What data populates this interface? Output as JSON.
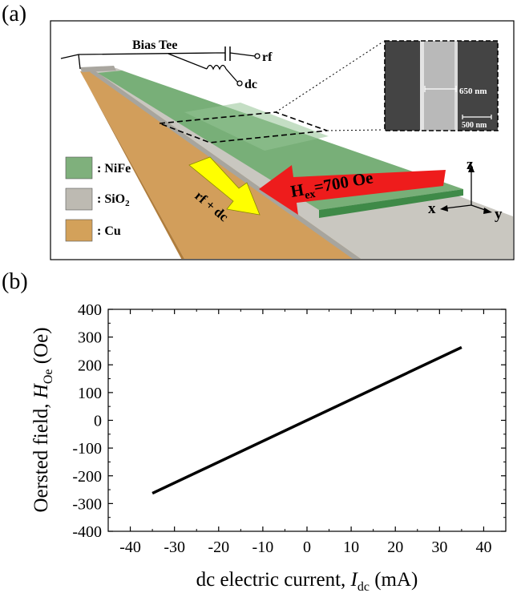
{
  "panel_a": {
    "label": "(a)",
    "bias_tee": "Bias Tee",
    "rf": "rf",
    "dc": "dc",
    "legend": [
      {
        "text": ": NiFe",
        "color": "#7fb07c"
      },
      {
        "text": ": SiO",
        "sub": "2",
        "color": "#bdbab2"
      },
      {
        "text": ": Cu",
        "color": "#d3a15a"
      }
    ],
    "field_label": "H",
    "field_sub": "ex",
    "field_value": "=700 Oe",
    "current_label": "rf + dc",
    "axes": {
      "x": "x",
      "y": "y",
      "z": "z"
    },
    "sem": {
      "width_label": "650 nm",
      "scale_label": "500 nm"
    },
    "colors": {
      "nife": "#6faa6f",
      "sio2": "#c8c6bf",
      "cu": "#d3a15a",
      "field_arrow": "#ee1c1c",
      "current_arrow": "#ffff00"
    }
  },
  "panel_b": {
    "label": "(b)"
  },
  "chart_data": {
    "type": "line",
    "title": "",
    "xlabel": "dc electric current, ",
    "xlabel_var": "I",
    "xlabel_sub": "dc",
    "xlabel_unit": " (mA)",
    "ylabel": "Oersted field, ",
    "ylabel_var": "H",
    "ylabel_sub": "Oe",
    "ylabel_unit": " (Oe)",
    "xlim": [
      -45,
      45
    ],
    "ylim": [
      -400,
      400
    ],
    "xticks": [
      -40,
      -30,
      -20,
      -10,
      0,
      10,
      20,
      30,
      40
    ],
    "yticks": [
      -400,
      -300,
      -200,
      -100,
      0,
      100,
      200,
      300,
      400
    ],
    "series": [
      {
        "name": "Oersted field",
        "x": [
          -35,
          35
        ],
        "y": [
          -263,
          263
        ],
        "color": "#000000"
      }
    ]
  }
}
